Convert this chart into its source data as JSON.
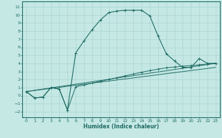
{
  "xlabel": "Humidex (Indice chaleur)",
  "bg_color": "#c5e8e5",
  "grid_color": "#aad4d0",
  "line_color": "#1e6b63",
  "xlim": [
    -0.5,
    23.5
  ],
  "ylim": [
    -2.7,
    11.7
  ],
  "xticks": [
    0,
    1,
    2,
    3,
    4,
    5,
    6,
    7,
    8,
    9,
    10,
    11,
    12,
    13,
    14,
    15,
    16,
    17,
    18,
    19,
    20,
    21,
    22,
    23
  ],
  "yticks": [
    -2,
    -1,
    0,
    1,
    2,
    3,
    4,
    5,
    6,
    7,
    8,
    9,
    10,
    11
  ],
  "line1_x": [
    0,
    1,
    2,
    3,
    4,
    5,
    6,
    7,
    8,
    9,
    10,
    11,
    12,
    13,
    14,
    15,
    16,
    17,
    18,
    19,
    20,
    21,
    22,
    23
  ],
  "line1_y": [
    0.5,
    -0.3,
    -0.2,
    1.0,
    0.8,
    -1.8,
    5.3,
    6.8,
    8.2,
    9.4,
    10.3,
    10.5,
    10.6,
    10.6,
    10.6,
    9.9,
    7.4,
    5.2,
    4.3,
    3.5,
    3.5,
    4.6,
    4.0,
    4.0
  ],
  "line2_x": [
    0,
    1,
    2,
    3,
    4,
    5,
    6,
    7,
    8,
    9,
    10,
    11,
    12,
    13,
    14,
    15,
    16,
    17,
    18,
    19,
    20,
    21,
    22,
    23
  ],
  "line2_y": [
    0.5,
    -0.3,
    -0.2,
    1.0,
    0.8,
    -1.8,
    1.1,
    1.3,
    1.55,
    1.78,
    2.0,
    2.22,
    2.45,
    2.67,
    2.9,
    3.1,
    3.28,
    3.45,
    3.55,
    3.65,
    3.72,
    3.82,
    3.92,
    4.0
  ],
  "line3_x": [
    0,
    23
  ],
  "line3_y": [
    0.5,
    4.0
  ],
  "line4_x": [
    0,
    23
  ],
  "line4_y": [
    0.5,
    3.5
  ]
}
